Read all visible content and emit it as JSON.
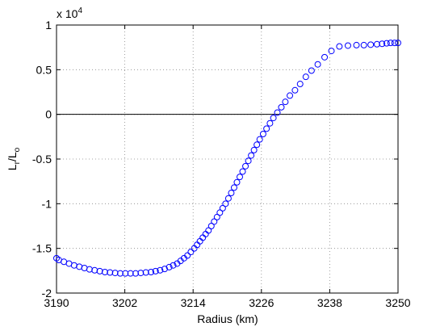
{
  "chart_data": {
    "type": "scatter",
    "xlabel": "Radius (km)",
    "ylabel": {
      "base": "L",
      "sub": "r",
      "base2": "/L",
      "sub2": "o"
    },
    "y_multiplier": {
      "base": "x 10",
      "exponent": "4"
    },
    "color": "#0000ff",
    "grid": true,
    "zero_line": true,
    "xlim": [
      3190,
      3250
    ],
    "xticks": [
      3190,
      3202,
      3214,
      3226,
      3238,
      3250
    ],
    "ylim": [
      -2,
      1
    ],
    "yticks": [
      -2,
      -1.5,
      -1,
      -0.5,
      0,
      0.5,
      1
    ],
    "x": [
      3190,
      3190.4,
      3191.3,
      3192.2,
      3193.1,
      3194.0,
      3194.9,
      3195.8,
      3196.7,
      3197.6,
      3198.5,
      3199.4,
      3200.3,
      3201.2,
      3202.1,
      3203.0,
      3203.9,
      3204.8,
      3205.7,
      3206.6,
      3207.4,
      3208.2,
      3209.0,
      3209.8,
      3210.5,
      3211.2,
      3211.8,
      3212.4,
      3213.0,
      3213.6,
      3214.2,
      3214.7,
      3215.2,
      3215.7,
      3216.2,
      3216.7,
      3217.2,
      3217.7,
      3218.2,
      3218.7,
      3219.2,
      3219.7,
      3220.2,
      3220.7,
      3221.2,
      3221.7,
      3222.2,
      3222.7,
      3223.2,
      3223.7,
      3224.2,
      3224.7,
      3225.2,
      3225.7,
      3226.3,
      3226.9,
      3227.5,
      3228.1,
      3228.8,
      3229.5,
      3230.2,
      3231.0,
      3231.9,
      3232.8,
      3233.8,
      3234.8,
      3235.9,
      3237.1,
      3238.3,
      3239.7,
      3241.2,
      3242.7,
      3244.0,
      3245.2,
      3246.3,
      3247.2,
      3248.0,
      3248.7,
      3249.4,
      3250
    ],
    "values": [
      -1.61,
      -1.63,
      -1.65,
      -1.67,
      -1.69,
      -1.705,
      -1.72,
      -1.735,
      -1.745,
      -1.755,
      -1.765,
      -1.77,
      -1.775,
      -1.78,
      -1.78,
      -1.78,
      -1.78,
      -1.775,
      -1.77,
      -1.765,
      -1.755,
      -1.745,
      -1.73,
      -1.71,
      -1.69,
      -1.67,
      -1.64,
      -1.61,
      -1.58,
      -1.54,
      -1.5,
      -1.46,
      -1.42,
      -1.38,
      -1.34,
      -1.3,
      -1.25,
      -1.2,
      -1.15,
      -1.1,
      -1.05,
      -1.0,
      -0.94,
      -0.88,
      -0.82,
      -0.76,
      -0.7,
      -0.64,
      -0.58,
      -0.52,
      -0.46,
      -0.4,
      -0.34,
      -0.28,
      -0.22,
      -0.16,
      -0.1,
      -0.04,
      0.02,
      0.08,
      0.14,
      0.21,
      0.27,
      0.34,
      0.42,
      0.49,
      0.56,
      0.64,
      0.71,
      0.76,
      0.77,
      0.775,
      0.775,
      0.78,
      0.785,
      0.79,
      0.795,
      0.8,
      0.8,
      0.8
    ]
  }
}
